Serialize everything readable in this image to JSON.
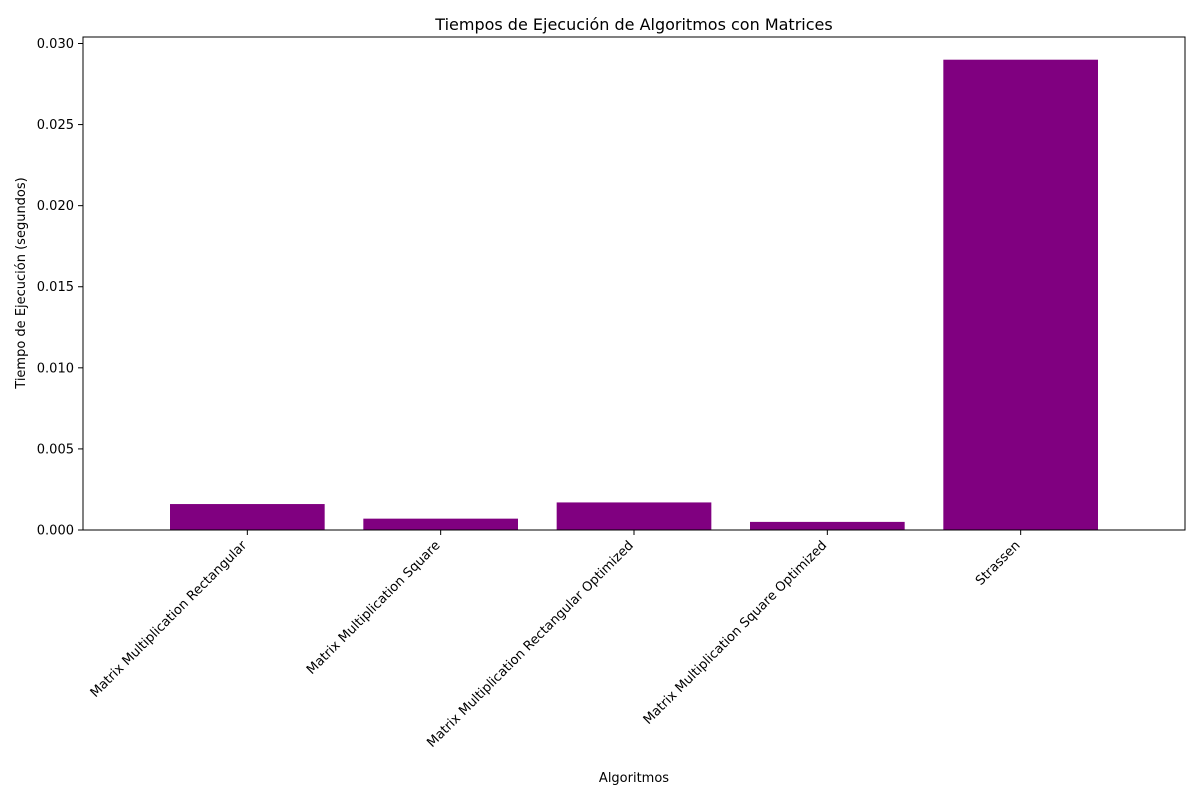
{
  "chart_data": {
    "type": "bar",
    "title": "Tiempos de Ejecución de Algoritmos con Matrices",
    "xlabel": "Algoritmos",
    "ylabel": "Tiempo de Ejecución (segundos)",
    "categories": [
      "Matrix Multiplication Rectangular",
      "Matrix Multiplication Square",
      "Matrix Multiplication Rectangular Optimized",
      "Matrix Multiplication Square Optimized",
      "Strassen"
    ],
    "values": [
      0.0016,
      0.0007,
      0.0017,
      0.0005,
      0.029
    ],
    "ylim": [
      0,
      0.0304
    ],
    "yticks": [
      0.0,
      0.005,
      0.01,
      0.015,
      0.02,
      0.025,
      0.03
    ],
    "ytick_labels": [
      "0.000",
      "0.005",
      "0.010",
      "0.015",
      "0.020",
      "0.025",
      "0.030"
    ],
    "bar_color": "#800080",
    "grid": false,
    "legend": "none",
    "xtick_rotation_deg": 45
  }
}
